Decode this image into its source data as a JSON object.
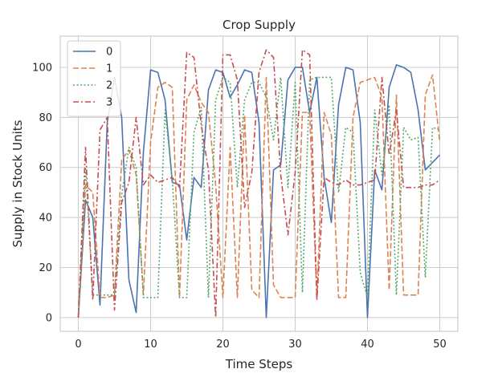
{
  "chart_data": {
    "type": "line",
    "title": "Crop Supply",
    "xlabel": "Time Steps",
    "ylabel": "Supply in Stock Units",
    "xlim": [
      -2.5,
      52.5
    ],
    "ylim": [
      -5.5,
      112.5
    ],
    "xticks": [
      0,
      10,
      20,
      30,
      40,
      50
    ],
    "yticks": [
      0,
      20,
      40,
      60,
      80,
      100
    ],
    "grid": true,
    "legend": "top-left",
    "x": [
      0,
      1,
      2,
      3,
      4,
      5,
      6,
      7,
      8,
      9,
      10,
      11,
      12,
      13,
      14,
      15,
      16,
      17,
      18,
      19,
      20,
      21,
      22,
      23,
      24,
      25,
      26,
      27,
      28,
      29,
      30,
      31,
      32,
      33,
      34,
      35,
      36,
      37,
      38,
      39,
      40,
      41,
      42,
      43,
      44,
      45,
      46,
      47,
      48,
      49,
      50
    ],
    "series": [
      {
        "name": "0",
        "color": "#4c72b0",
        "dash": "solid",
        "values": [
          0,
          47,
          40,
          5,
          78,
          96,
          80,
          15,
          2,
          66,
          99,
          98,
          87,
          54,
          53,
          31,
          56,
          52,
          91,
          99,
          98,
          88,
          93,
          99,
          98,
          78,
          0,
          59,
          61,
          95,
          100,
          100,
          82,
          96,
          56,
          38,
          85,
          100,
          99,
          78,
          0,
          59,
          51,
          92,
          101,
          100,
          98,
          83,
          59,
          62,
          65
        ]
      },
      {
        "name": "1",
        "color": "#dd8452",
        "dash": "dashed",
        "values": [
          0,
          53,
          50,
          8,
          8,
          9,
          63,
          67,
          57,
          9,
          70,
          92,
          94,
          92,
          8,
          87,
          93,
          86,
          82,
          53,
          8,
          68,
          8,
          81,
          11,
          8,
          96,
          13,
          8,
          8,
          8,
          82,
          82,
          8,
          82,
          73,
          8,
          8,
          80,
          94,
          95,
          96,
          88,
          11,
          89,
          9,
          9,
          9,
          89,
          97,
          70
        ]
      },
      {
        "name": "2",
        "color": "#55a868",
        "dash": "dotted",
        "values": [
          0,
          60,
          9,
          9,
          9,
          9,
          49,
          68,
          60,
          8,
          8,
          8,
          83,
          55,
          8,
          8,
          74,
          84,
          8,
          87,
          96,
          94,
          52,
          87,
          94,
          94,
          88,
          71,
          96,
          52,
          94,
          10,
          95,
          96,
          96,
          96,
          50,
          76,
          74,
          18,
          8,
          83,
          57,
          85,
          9,
          76,
          71,
          72,
          16,
          76,
          75
        ]
      },
      {
        "name": "3",
        "color": "#c44e52",
        "dash": "dashdot",
        "values": [
          0,
          68,
          7,
          75,
          80,
          3,
          46,
          54,
          80,
          53,
          57,
          54,
          55,
          56,
          52,
          106,
          104,
          77,
          59,
          0,
          105,
          105,
          95,
          44,
          58,
          98,
          107,
          104,
          57,
          33,
          58,
          107,
          105,
          7,
          56,
          54,
          53,
          55,
          53,
          53,
          54,
          55,
          96,
          65,
          83,
          52,
          52,
          52,
          53,
          53,
          55
        ]
      }
    ]
  }
}
